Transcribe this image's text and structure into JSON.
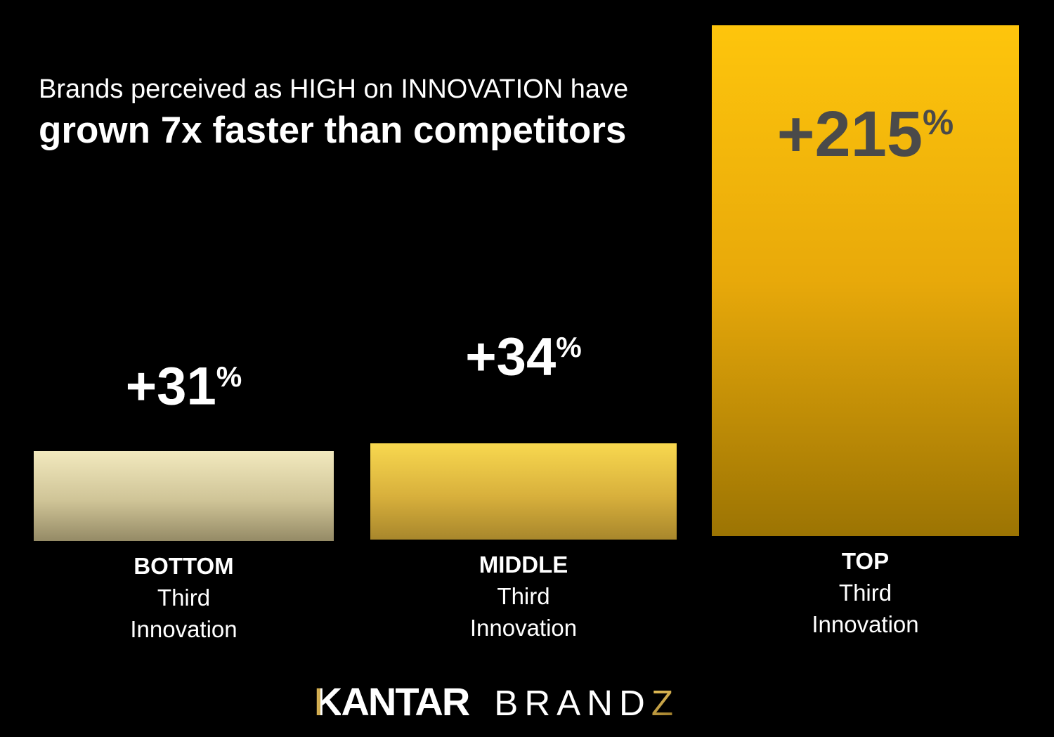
{
  "title": {
    "line1": "Brands perceived as HIGH on INNOVATION have",
    "line2": "grown 7x faster than competitors"
  },
  "chart_data": {
    "type": "bar",
    "categories": [
      "BOTTOM Third Innovation",
      "MIDDLE Third Innovation",
      "TOP Third Innovation"
    ],
    "values": [
      31,
      34,
      215
    ],
    "value_labels": [
      "+31%",
      "+34%",
      "+215%"
    ],
    "title": "Brands perceived as HIGH on INNOVATION have grown 7x faster than competitors",
    "xlabel": "",
    "ylabel": "",
    "unit": "% growth",
    "grid": false,
    "legend": false,
    "axes_shown": false,
    "background_color": "#000000",
    "bar_gradients": [
      {
        "top": "#f2e9be",
        "bottom": "#958b66"
      },
      {
        "top": "#f8d84f",
        "bottom": "#a8872c"
      },
      {
        "top": "#fec50c",
        "bottom": "#9c7403"
      }
    ],
    "value_label_colors": [
      "#ffffff",
      "#ffffff",
      "#4a4a4a"
    ]
  },
  "bars": [
    {
      "value": "+31",
      "pct": "%",
      "tier": "BOTTOM",
      "sub1": "Third",
      "sub2": "Innovation"
    },
    {
      "value": "+34",
      "pct": "%",
      "tier": "MIDDLE",
      "sub1": "Third",
      "sub2": "Innovation"
    },
    {
      "value": "+215",
      "pct": "%",
      "tier": "TOP",
      "sub1": "Third",
      "sub2": "Innovation"
    }
  ],
  "logo": {
    "kantar_k": "K",
    "kantar_rest": "ANTAR",
    "brand": "BRAND",
    "z": "Z",
    "gold_accent": "#caa64a"
  }
}
